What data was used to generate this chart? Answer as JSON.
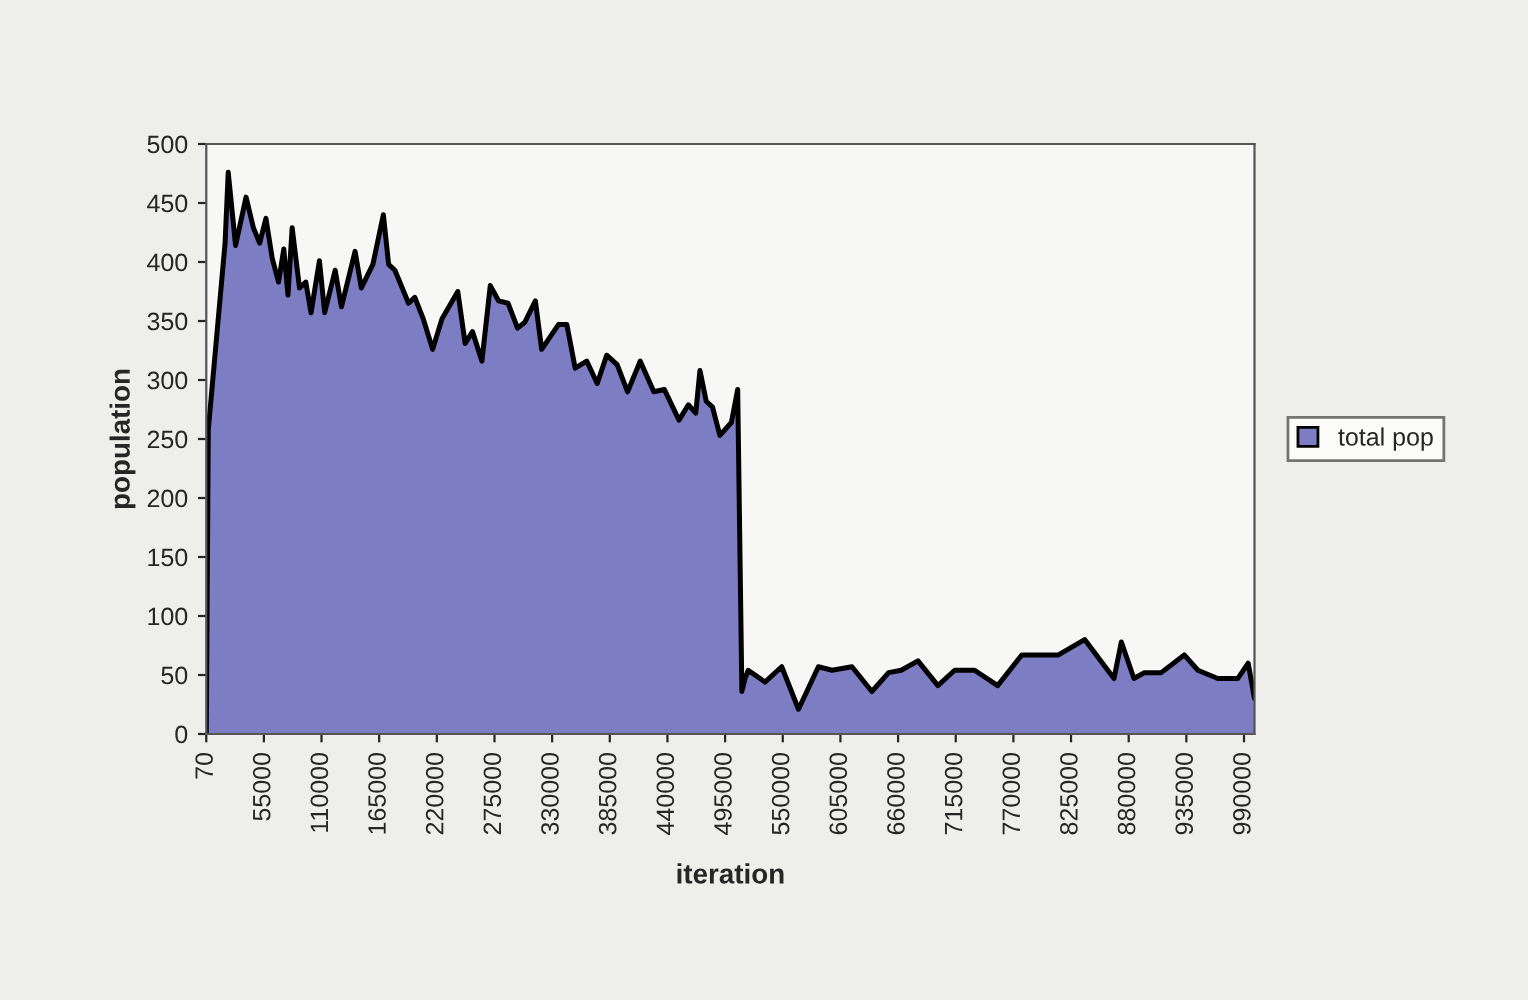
{
  "chart_data": {
    "type": "area",
    "xlabel": "iteration",
    "ylabel": "population",
    "x": [
      70,
      2000,
      18000,
      21000,
      28000,
      38000,
      45000,
      51000,
      57000,
      63000,
      69000,
      74000,
      78000,
      82000,
      89000,
      95000,
      100000,
      108000,
      113000,
      123000,
      129000,
      142000,
      148000,
      159000,
      169000,
      174000,
      180000,
      193000,
      199000,
      207000,
      216000,
      225000,
      240000,
      247000,
      254000,
      263000,
      271000,
      279000,
      288000,
      297000,
      304000,
      314000,
      320000,
      336000,
      344000,
      352000,
      363000,
      373000,
      382000,
      392000,
      402000,
      414000,
      427000,
      437000,
      451000,
      460000,
      467000,
      471000,
      477000,
      483000,
      490000,
      501000,
      507000,
      511000,
      514000,
      517000,
      533000,
      549000,
      565000,
      584000,
      597000,
      616000,
      635000,
      651000,
      663000,
      679000,
      698000,
      714000,
      733000,
      755000,
      778000,
      787000,
      813000,
      838000,
      866000,
      873000,
      885000,
      895000,
      911000,
      933000,
      946000,
      965000,
      984000,
      994000,
      1000000
    ],
    "series": [
      {
        "name": "total pop",
        "color": "#7d7dc4",
        "values": [
          0,
          258,
          416,
          476,
          414,
          455,
          429,
          416,
          437,
          403,
          383,
          411,
          372,
          429,
          378,
          383,
          357,
          401,
          357,
          393,
          362,
          409,
          378,
          398,
          440,
          398,
          393,
          365,
          370,
          352,
          326,
          352,
          375,
          331,
          341,
          316,
          380,
          367,
          365,
          344,
          349,
          367,
          326,
          347,
          347,
          310,
          316,
          297,
          321,
          313,
          290,
          316,
          290,
          292,
          266,
          279,
          272,
          308,
          282,
          277,
          253,
          264,
          292,
          36,
          47,
          54,
          44,
          57,
          21,
          57,
          54,
          57,
          36,
          52,
          54,
          62,
          41,
          54,
          54,
          41,
          67,
          67,
          67,
          80,
          47,
          78,
          47,
          52,
          52,
          67,
          54,
          47,
          47,
          60,
          30
        ]
      }
    ],
    "xlim": [
      70,
      1000000
    ],
    "ylim": [
      0,
      500
    ],
    "xticks": [
      70,
      55000,
      110000,
      165000,
      220000,
      275000,
      330000,
      385000,
      440000,
      495000,
      550000,
      605000,
      660000,
      715000,
      770000,
      825000,
      880000,
      935000,
      990000
    ],
    "yticks": [
      0,
      50,
      100,
      150,
      200,
      250,
      300,
      350,
      400,
      450,
      500
    ],
    "grid": false,
    "legend": "right"
  }
}
